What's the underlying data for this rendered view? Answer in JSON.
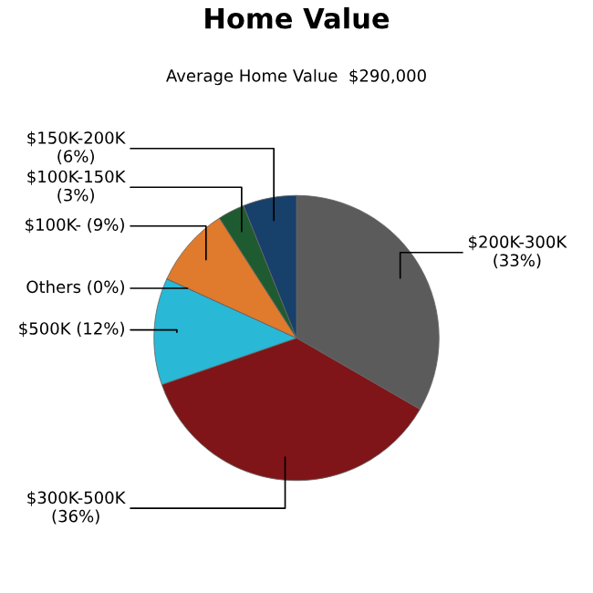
{
  "chart_data": {
    "type": "pie",
    "title": "Home Value",
    "subtitle": "Average Home Value  $290,000",
    "categories": [
      "$200K-300K",
      "$300K-500K",
      "$500K",
      "Others",
      "$100K-",
      "$100K-150K",
      "$150K-200K"
    ],
    "values": [
      33,
      36,
      12,
      0,
      9,
      3,
      6
    ],
    "value_labels": [
      "(33%)",
      "(36%)",
      "(12%)",
      "(0%)",
      "(9%)",
      "(3%)",
      "(6%)"
    ],
    "colors": [
      "#5b5b5b",
      "#7f1518",
      "#29b8d5",
      "#9a9a9a",
      "#e07a2c",
      "#1f5b30",
      "#17406a"
    ]
  }
}
